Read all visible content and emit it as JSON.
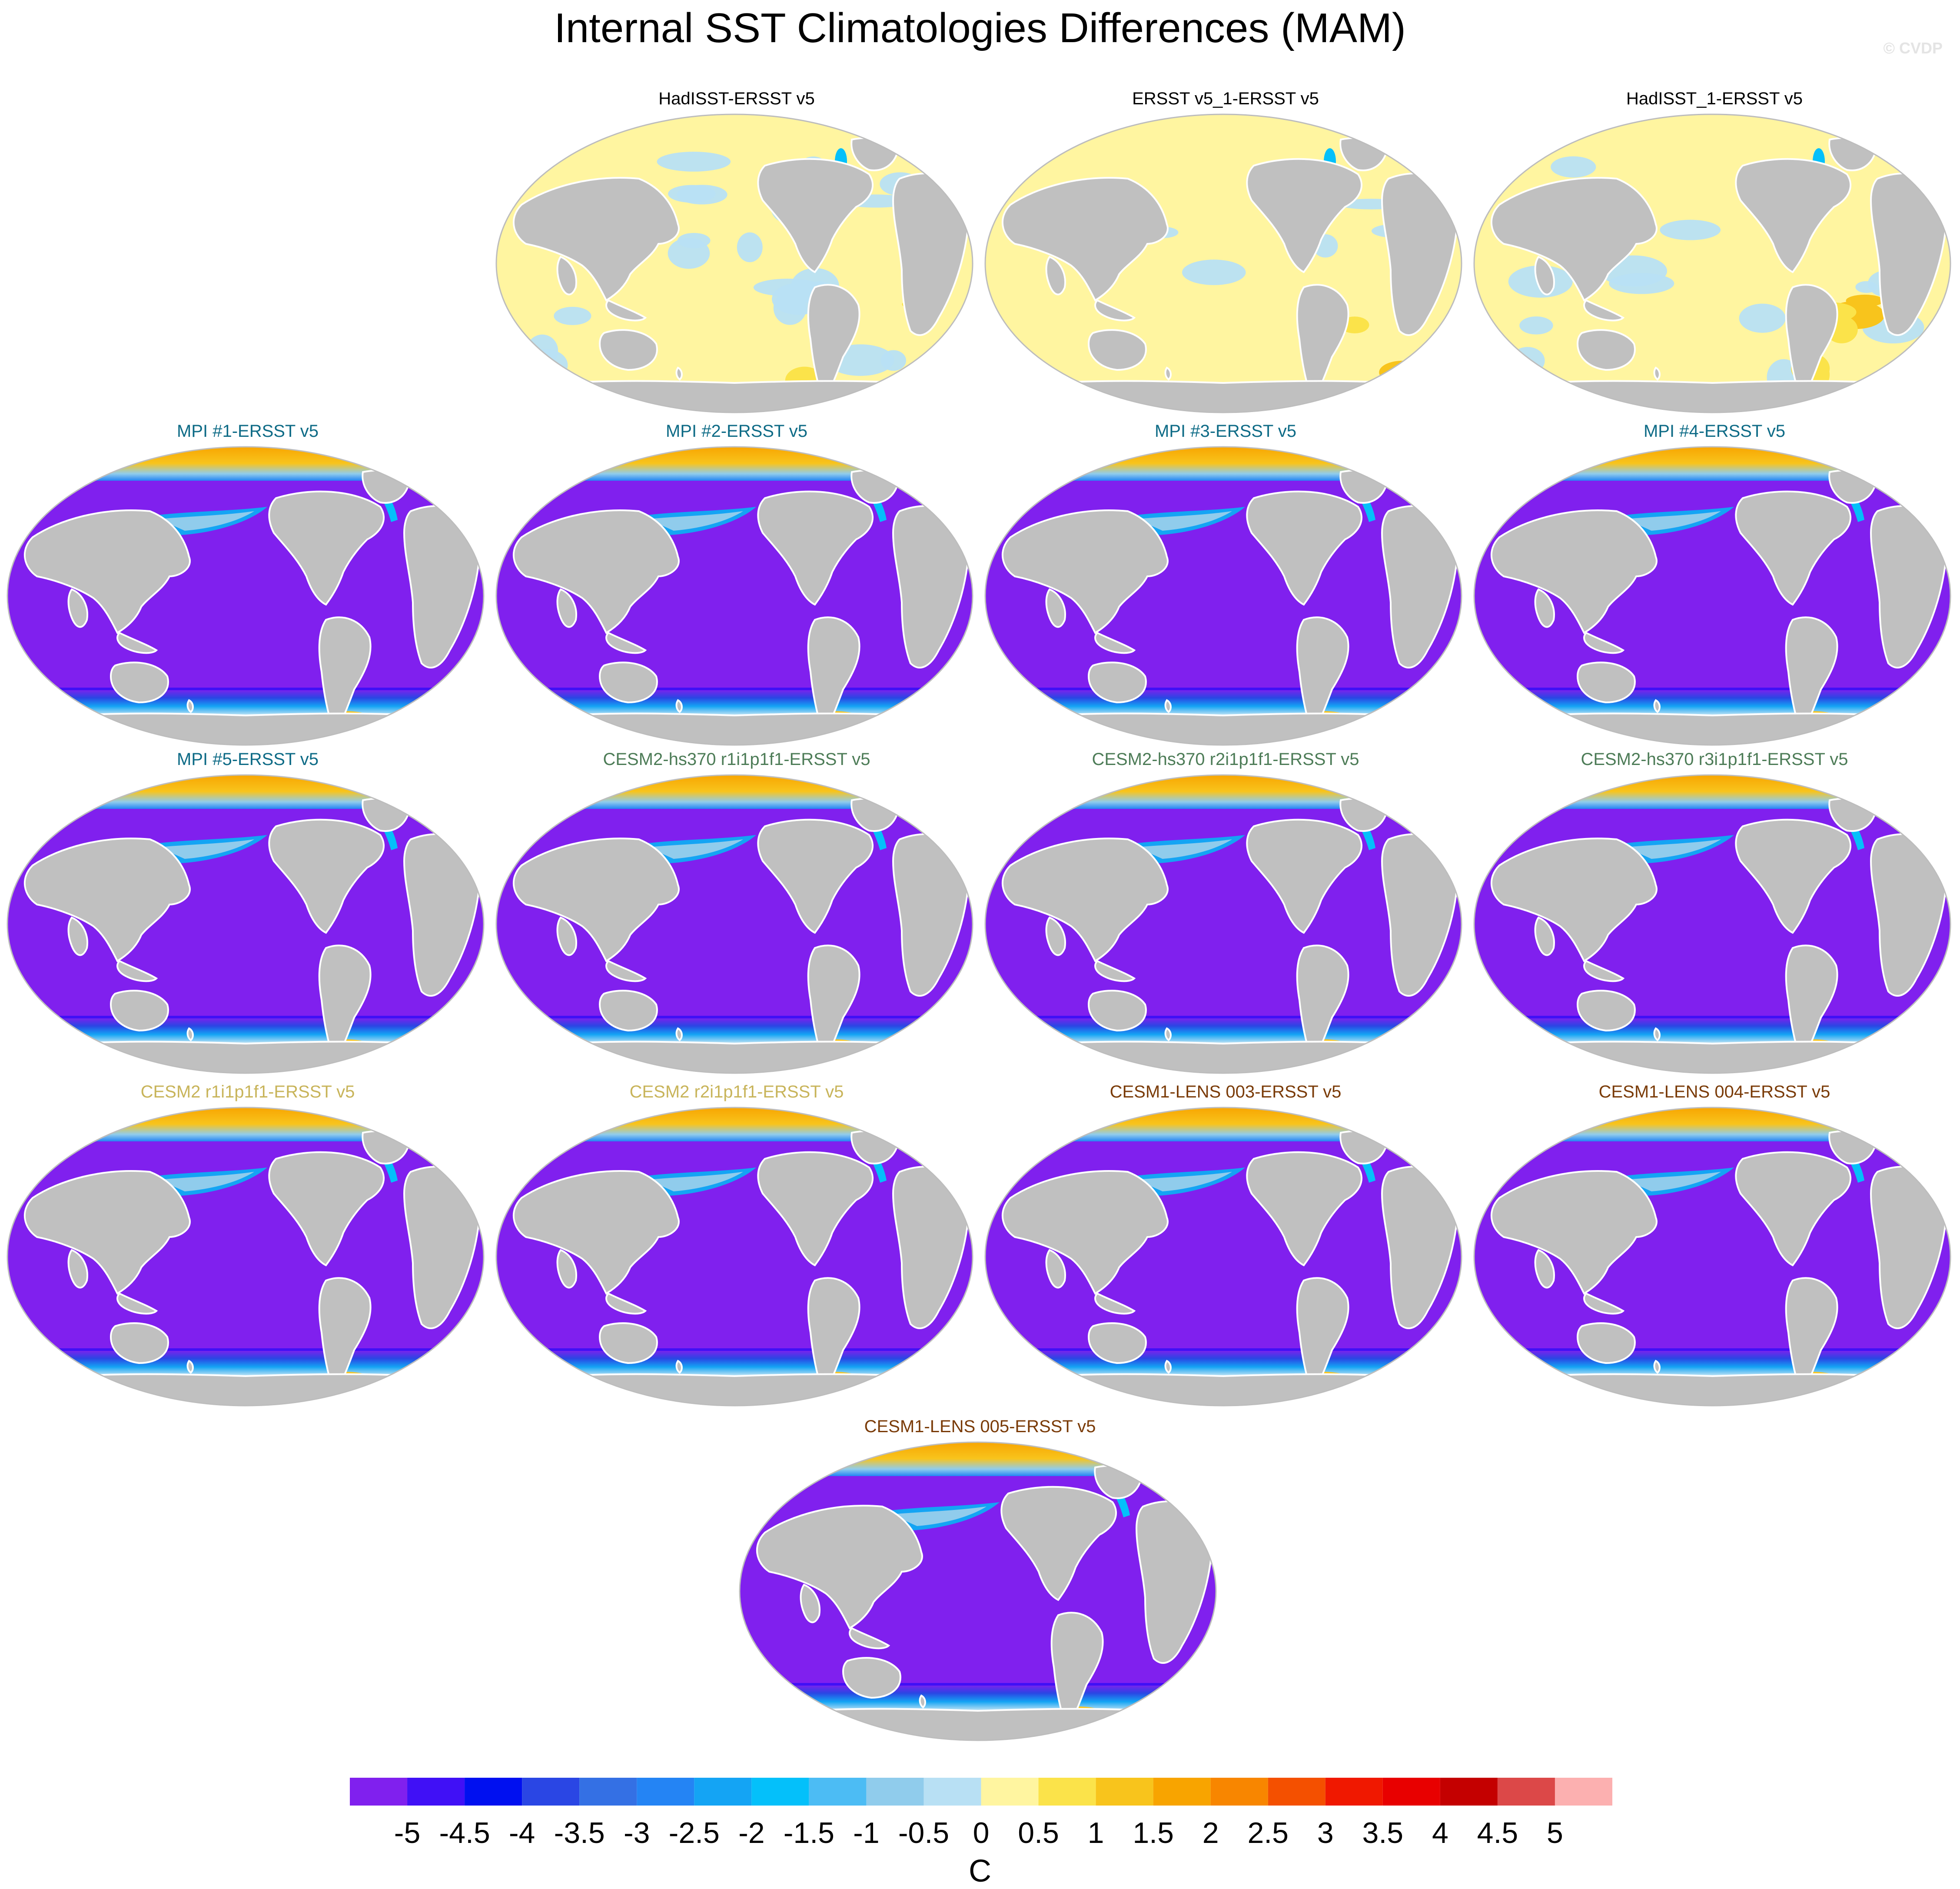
{
  "title": "Internal SST Climatologies Differences (MAM)",
  "watermark": "© CVDP",
  "panels": [
    {
      "title": "HadISST-ERSST v5",
      "title_color": "#000000",
      "type": "obs",
      "variant": 0
    },
    {
      "title": "ERSST v5_1-ERSST v5",
      "title_color": "#000000",
      "type": "obs",
      "variant": 1
    },
    {
      "title": "HadISST_1-ERSST v5",
      "title_color": "#000000",
      "type": "obs",
      "variant": 2
    },
    {
      "title": "MPI #1-ERSST v5",
      "title_color": "#0e6b86",
      "type": "model"
    },
    {
      "title": "MPI #2-ERSST v5",
      "title_color": "#0e6b86",
      "type": "model"
    },
    {
      "title": "MPI #3-ERSST v5",
      "title_color": "#0e6b86",
      "type": "model"
    },
    {
      "title": "MPI #4-ERSST v5",
      "title_color": "#0e6b86",
      "type": "model"
    },
    {
      "title": "MPI #5-ERSST v5",
      "title_color": "#0e6b86",
      "type": "model"
    },
    {
      "title": "CESM2-hs370 r1i1p1f1-ERSST v5",
      "title_color": "#4d7c57",
      "type": "model"
    },
    {
      "title": "CESM2-hs370 r2i1p1f1-ERSST v5",
      "title_color": "#4d7c57",
      "type": "model"
    },
    {
      "title": "CESM2-hs370 r3i1p1f1-ERSST v5",
      "title_color": "#4d7c57",
      "type": "model"
    },
    {
      "title": "CESM2 r1i1p1f1-ERSST v5",
      "title_color": "#c8b45a",
      "type": "model"
    },
    {
      "title": "CESM2 r2i1p1f1-ERSST v5",
      "title_color": "#c8b45a",
      "type": "model"
    },
    {
      "title": "CESM1-LENS 003-ERSST v5",
      "title_color": "#7a3b08",
      "type": "model"
    },
    {
      "title": "CESM1-LENS 004-ERSST v5",
      "title_color": "#7a3b08",
      "type": "model"
    },
    {
      "title": "CESM1-LENS 005-ERSST v5",
      "title_color": "#7a3b08",
      "type": "model"
    }
  ],
  "colorbar": {
    "units": "C",
    "ticks": [
      "-5",
      "-4.5",
      "-4",
      "-3.5",
      "-3",
      "-2.5",
      "-2",
      "-1.5",
      "-1",
      "-0.5",
      "0",
      "0.5",
      "1",
      "1.5",
      "2",
      "2.5",
      "3",
      "3.5",
      "4",
      "4.5",
      "5"
    ],
    "colors": [
      "#8020ee",
      "#4010f6",
      "#0010f0",
      "#2a46e4",
      "#3470e4",
      "#2484f4",
      "#14a4f4",
      "#04c0fa",
      "#4cbcf4",
      "#90ccec",
      "#b8e0f4",
      "#fff5a0",
      "#fbe34a",
      "#f8c41c",
      "#f8a400",
      "#f88600",
      "#f45000",
      "#f01800",
      "#e80000",
      "#c40000",
      "#dc4848",
      "#fcb0b0"
    ]
  },
  "map_colors": {
    "land": "#c0c0c0",
    "outline": "#bdbdbd"
  }
}
